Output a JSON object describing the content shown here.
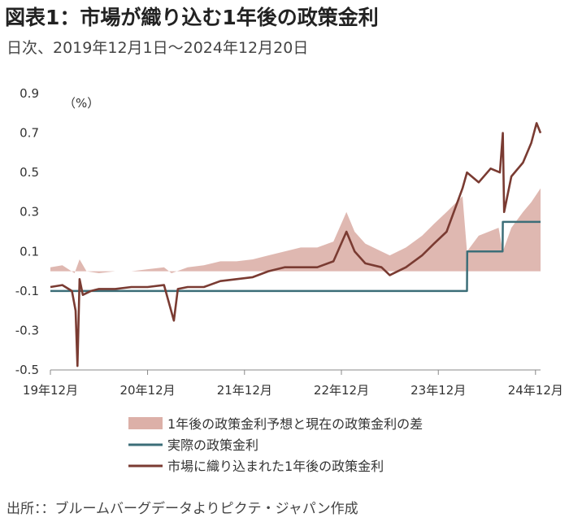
{
  "title": "図表1：市場が織り込む1年後の政策金利",
  "subtitle": "日次、2019年12月1日～2024年12月20日",
  "source": "出所：：ブルームバーグデータよりピクテ・ジャパン作成",
  "chart_data": {
    "type": "line",
    "unit_label": "（%）",
    "ylim": [
      -0.5,
      0.9
    ],
    "yticks": [
      "0.9",
      "0.7",
      "0.5",
      "0.3",
      "0.1",
      "-0.1",
      "-0.3",
      "-0.5"
    ],
    "xlim": [
      "2019-12-01",
      "2024-12-20"
    ],
    "xticks": [
      {
        "date": "2019-12-01",
        "label": "19年12月"
      },
      {
        "date": "2020-12-01",
        "label": "20年12月"
      },
      {
        "date": "2021-12-01",
        "label": "21年12月"
      },
      {
        "date": "2022-12-01",
        "label": "22年12月"
      },
      {
        "date": "2023-12-01",
        "label": "23年12月"
      },
      {
        "date": "2024-12-01",
        "label": "24年12月"
      }
    ],
    "grid": false,
    "legend_position": "bottom",
    "series": [
      {
        "name": "1年後の政策金利予想と現在の政策金利の差",
        "kind": "area",
        "color": "#dcb0a8",
        "points": [
          [
            "2019-12-01",
            0.02
          ],
          [
            "2020-01-15",
            0.03
          ],
          [
            "2020-03-01",
            -0.01
          ],
          [
            "2020-03-20",
            0.06
          ],
          [
            "2020-04-15",
            0.0
          ],
          [
            "2020-06-01",
            -0.01
          ],
          [
            "2020-08-01",
            0.0
          ],
          [
            "2020-10-01",
            0.0
          ],
          [
            "2020-12-01",
            0.01
          ],
          [
            "2021-02-01",
            0.02
          ],
          [
            "2021-03-01",
            -0.01
          ],
          [
            "2021-05-01",
            0.02
          ],
          [
            "2021-07-01",
            0.03
          ],
          [
            "2021-09-01",
            0.05
          ],
          [
            "2021-11-01",
            0.05
          ],
          [
            "2022-01-01",
            0.06
          ],
          [
            "2022-03-01",
            0.08
          ],
          [
            "2022-05-01",
            0.1
          ],
          [
            "2022-07-01",
            0.12
          ],
          [
            "2022-09-01",
            0.12
          ],
          [
            "2022-11-01",
            0.15
          ],
          [
            "2022-12-20",
            0.3
          ],
          [
            "2023-01-20",
            0.2
          ],
          [
            "2023-03-01",
            0.14
          ],
          [
            "2023-05-01",
            0.1
          ],
          [
            "2023-06-01",
            0.08
          ],
          [
            "2023-08-01",
            0.12
          ],
          [
            "2023-10-01",
            0.18
          ],
          [
            "2023-11-15",
            0.24
          ],
          [
            "2024-01-01",
            0.3
          ],
          [
            "2024-03-01",
            0.38
          ],
          [
            "2024-03-18",
            0.1
          ],
          [
            "2024-05-01",
            0.18
          ],
          [
            "2024-07-15",
            0.22
          ],
          [
            "2024-07-31",
            0.1
          ],
          [
            "2024-09-01",
            0.22
          ],
          [
            "2024-10-15",
            0.3
          ],
          [
            "2024-11-15",
            0.35
          ],
          [
            "2024-12-20",
            0.42
          ]
        ]
      },
      {
        "name": "実際の政策金利",
        "kind": "step",
        "color": "#3c6e78",
        "points": [
          [
            "2019-12-01",
            -0.1
          ],
          [
            "2024-03-18",
            -0.1
          ],
          [
            "2024-03-19",
            0.1
          ],
          [
            "2024-07-30",
            0.1
          ],
          [
            "2024-07-31",
            0.25
          ],
          [
            "2024-12-20",
            0.25
          ]
        ]
      },
      {
        "name": "市場に織り込まれた1年後の政策金利",
        "kind": "line",
        "color": "#7a3b32",
        "points": [
          [
            "2019-12-01",
            -0.08
          ],
          [
            "2020-01-15",
            -0.07
          ],
          [
            "2020-02-20",
            -0.1
          ],
          [
            "2020-03-05",
            -0.2
          ],
          [
            "2020-03-12",
            -0.48
          ],
          [
            "2020-03-20",
            -0.04
          ],
          [
            "2020-04-01",
            -0.12
          ],
          [
            "2020-05-01",
            -0.1
          ],
          [
            "2020-06-01",
            -0.09
          ],
          [
            "2020-08-01",
            -0.09
          ],
          [
            "2020-10-01",
            -0.08
          ],
          [
            "2020-12-01",
            -0.08
          ],
          [
            "2021-02-01",
            -0.07
          ],
          [
            "2021-03-10",
            -0.25
          ],
          [
            "2021-03-25",
            -0.09
          ],
          [
            "2021-05-01",
            -0.08
          ],
          [
            "2021-07-01",
            -0.08
          ],
          [
            "2021-09-01",
            -0.05
          ],
          [
            "2021-11-01",
            -0.04
          ],
          [
            "2022-01-01",
            -0.03
          ],
          [
            "2022-03-01",
            0.0
          ],
          [
            "2022-05-01",
            0.02
          ],
          [
            "2022-07-01",
            0.02
          ],
          [
            "2022-09-01",
            0.02
          ],
          [
            "2022-11-01",
            0.05
          ],
          [
            "2022-12-20",
            0.2
          ],
          [
            "2023-01-20",
            0.1
          ],
          [
            "2023-03-01",
            0.04
          ],
          [
            "2023-05-01",
            0.02
          ],
          [
            "2023-06-01",
            -0.02
          ],
          [
            "2023-08-01",
            0.02
          ],
          [
            "2023-10-01",
            0.08
          ],
          [
            "2023-11-15",
            0.14
          ],
          [
            "2024-01-01",
            0.2
          ],
          [
            "2024-03-01",
            0.42
          ],
          [
            "2024-03-18",
            0.5
          ],
          [
            "2024-05-01",
            0.45
          ],
          [
            "2024-06-15",
            0.52
          ],
          [
            "2024-07-20",
            0.5
          ],
          [
            "2024-07-31",
            0.7
          ],
          [
            "2024-08-05",
            0.3
          ],
          [
            "2024-09-01",
            0.48
          ],
          [
            "2024-10-15",
            0.55
          ],
          [
            "2024-11-15",
            0.65
          ],
          [
            "2024-12-05",
            0.75
          ],
          [
            "2024-12-20",
            0.7
          ]
        ]
      }
    ]
  }
}
